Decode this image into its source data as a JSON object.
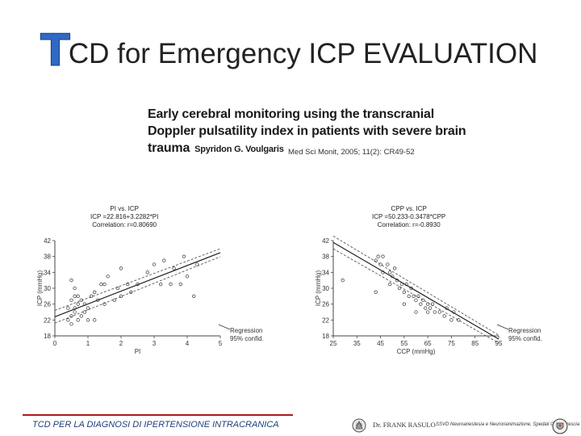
{
  "slide": {
    "title_initial": "T",
    "title_rest": "CD for Emergency ICP EVALUATION"
  },
  "paper": {
    "title_lines": [
      "Early cerebral monitoring using the transcranial",
      "Doppler pulsatility index in patients with severe brain",
      "trauma"
    ],
    "author": "Spyridon G. Voulgaris",
    "citation": "Med Sci Monit, 2005; 11(2): CR49-52"
  },
  "chart_data": [
    {
      "type": "scatter",
      "annotation": [
        "PI vs. ICP",
        "ICP =22.816+3.2282*PI",
        "Correlation: r=0.80690"
      ],
      "xlabel": "PI",
      "ylabel": "ICP (mmHg)",
      "xlim": [
        0,
        5
      ],
      "ylim": [
        18,
        42
      ],
      "x_ticks": [
        "0",
        "1",
        "2",
        "3",
        "4",
        "5"
      ],
      "y_ticks": [
        "18",
        "22",
        "26",
        "30",
        "34",
        "38",
        "42"
      ],
      "legend": [
        "Regression",
        "95% confid."
      ],
      "legend_position": "bottom-right",
      "regression": {
        "intercept": 22.816,
        "slope": 3.2282
      },
      "points": [
        [
          0.4,
          22
        ],
        [
          0.5,
          21
        ],
        [
          0.5,
          23
        ],
        [
          0.6,
          24
        ],
        [
          0.6,
          25
        ],
        [
          0.7,
          22
        ],
        [
          0.7,
          26
        ],
        [
          0.8,
          23
        ],
        [
          0.8,
          27
        ],
        [
          0.5,
          27
        ],
        [
          0.6,
          28
        ],
        [
          0.4,
          25
        ],
        [
          0.9,
          24
        ],
        [
          0.9,
          26
        ],
        [
          1.0,
          25
        ],
        [
          0.6,
          30
        ],
        [
          0.5,
          32
        ],
        [
          0.7,
          28
        ],
        [
          1.0,
          22
        ],
        [
          1.1,
          28
        ],
        [
          1.2,
          29
        ],
        [
          1.3,
          27
        ],
        [
          1.4,
          31
        ],
        [
          1.5,
          31
        ],
        [
          1.2,
          22
        ],
        [
          1.5,
          26
        ],
        [
          1.6,
          33
        ],
        [
          1.8,
          27
        ],
        [
          1.9,
          30
        ],
        [
          2.0,
          28
        ],
        [
          2.2,
          31
        ],
        [
          2.3,
          29
        ],
        [
          2.0,
          35
        ],
        [
          2.5,
          31
        ],
        [
          2.8,
          34
        ],
        [
          3.0,
          36
        ],
        [
          3.2,
          31
        ],
        [
          3.3,
          37
        ],
        [
          3.5,
          31
        ],
        [
          3.6,
          35
        ],
        [
          3.8,
          31
        ],
        [
          3.9,
          38
        ],
        [
          4.0,
          33
        ],
        [
          4.2,
          28
        ],
        [
          4.3,
          36
        ]
      ]
    },
    {
      "type": "scatter",
      "annotation": [
        "CPP vs. ICP",
        "ICP =50.233-0.3478*CPP",
        "Correlation: r=-0.8930"
      ],
      "xlabel": "CCP (mmHg)",
      "ylabel": "ICP (mmHg)",
      "xlim": [
        25,
        95
      ],
      "ylim": [
        18,
        42
      ],
      "x_ticks": [
        "25",
        "35",
        "45",
        "55",
        "65",
        "75",
        "85",
        "95"
      ],
      "y_ticks": [
        "18",
        "22",
        "26",
        "30",
        "34",
        "38",
        "42"
      ],
      "legend": [
        "Regression",
        "95% confid."
      ],
      "legend_position": "bottom-right",
      "regression": {
        "intercept": 50.233,
        "slope": -0.3478
      },
      "points": [
        [
          29,
          32
        ],
        [
          43,
          29
        ],
        [
          43,
          37
        ],
        [
          44,
          38
        ],
        [
          45,
          36
        ],
        [
          46,
          38
        ],
        [
          46,
          34
        ],
        [
          48,
          36
        ],
        [
          49,
          34
        ],
        [
          49,
          31
        ],
        [
          50,
          33
        ],
        [
          51,
          35
        ],
        [
          52,
          32
        ],
        [
          53,
          30
        ],
        [
          54,
          31
        ],
        [
          55,
          29
        ],
        [
          56,
          31
        ],
        [
          57,
          28
        ],
        [
          58,
          30
        ],
        [
          59,
          28
        ],
        [
          60,
          27
        ],
        [
          61,
          28
        ],
        [
          62,
          26
        ],
        [
          63,
          27
        ],
        [
          64,
          25
        ],
        [
          65,
          24
        ],
        [
          66,
          25
        ],
        [
          67,
          26
        ],
        [
          68,
          24
        ],
        [
          70,
          24
        ],
        [
          72,
          23
        ],
        [
          73,
          25
        ],
        [
          75,
          22
        ],
        [
          76,
          24
        ],
        [
          78,
          22
        ],
        [
          55,
          26
        ],
        [
          60,
          24
        ],
        [
          65,
          26
        ]
      ]
    }
  ],
  "footer": {
    "left_text": "TCD PER LA DIAGNOSI DI IPERTENSIONE INTRACRANICA",
    "name": "Dr. FRANK RASULO",
    "dept": "SSVD Neuroanestesia e Neurorianimazione, Spedali Civili, Brescia"
  },
  "colors": {
    "title_initial": "#2f69c4",
    "footer_rule": "#b01a1a",
    "footer_text": "#1f3f7a"
  }
}
